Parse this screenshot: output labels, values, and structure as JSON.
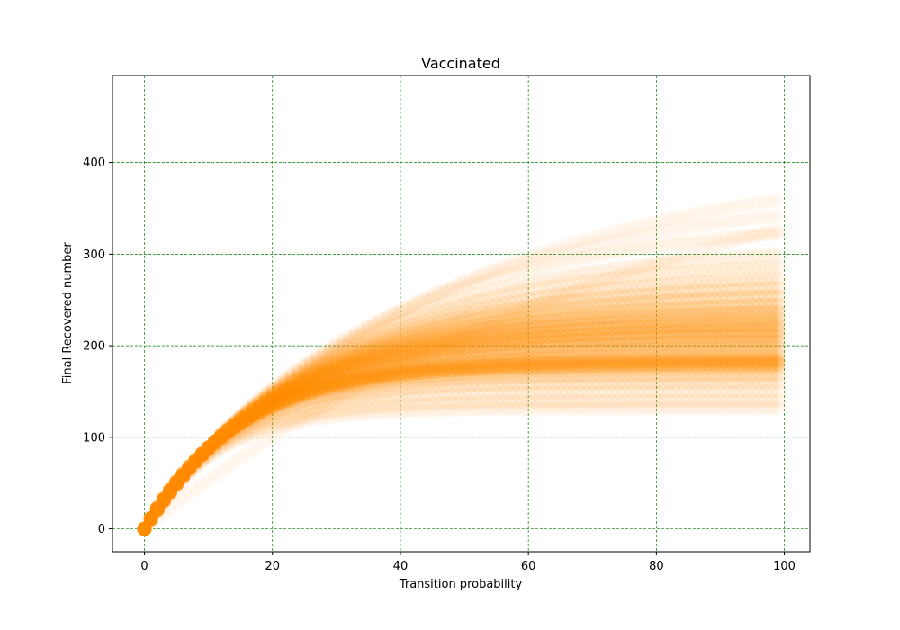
{
  "chart_data": {
    "type": "scatter",
    "title": "Vaccinated",
    "xlabel": "Transition probability",
    "ylabel": "Final Recovered number",
    "xlim": [
      -5,
      104
    ],
    "ylim": [
      -25,
      495
    ],
    "xticks": [
      0,
      20,
      40,
      60,
      80,
      100
    ],
    "yticks": [
      0,
      100,
      200,
      300,
      400
    ],
    "grid": true,
    "grid_color": "#008000",
    "marker_color": "#ff8c00",
    "x": {
      "start": 0,
      "end": 99,
      "step": 1
    },
    "series": [
      {
        "saturation": 470,
        "rate": 0.012,
        "opacity": 0.04
      },
      {
        "saturation": 405,
        "rate": 0.022,
        "opacity": 0.04
      },
      {
        "saturation": 370,
        "rate": 0.026,
        "opacity": 0.04
      },
      {
        "saturation": 340,
        "rate": 0.03,
        "opacity": 0.05
      },
      {
        "saturation": 310,
        "rate": 0.034,
        "opacity": 0.06
      },
      {
        "saturation": 295,
        "rate": 0.036,
        "opacity": 0.08
      },
      {
        "saturation": 280,
        "rate": 0.038,
        "opacity": 0.1
      },
      {
        "saturation": 268,
        "rate": 0.04,
        "opacity": 0.12
      },
      {
        "saturation": 258,
        "rate": 0.042,
        "opacity": 0.14
      },
      {
        "saturation": 248,
        "rate": 0.044,
        "opacity": 0.16
      },
      {
        "saturation": 240,
        "rate": 0.046,
        "opacity": 0.18
      },
      {
        "saturation": 232,
        "rate": 0.048,
        "opacity": 0.2
      },
      {
        "saturation": 225,
        "rate": 0.05,
        "opacity": 0.22
      },
      {
        "saturation": 218,
        "rate": 0.052,
        "opacity": 0.22
      },
      {
        "saturation": 212,
        "rate": 0.054,
        "opacity": 0.2
      },
      {
        "saturation": 205,
        "rate": 0.056,
        "opacity": 0.2
      },
      {
        "saturation": 198,
        "rate": 0.058,
        "opacity": 0.18
      },
      {
        "saturation": 190,
        "rate": 0.062,
        "opacity": 0.2
      },
      {
        "saturation": 184,
        "rate": 0.066,
        "opacity": 0.3
      },
      {
        "saturation": 180,
        "rate": 0.068,
        "opacity": 0.28
      },
      {
        "saturation": 175,
        "rate": 0.07,
        "opacity": 0.16
      },
      {
        "saturation": 168,
        "rate": 0.072,
        "opacity": 0.12
      },
      {
        "saturation": 160,
        "rate": 0.075,
        "opacity": 0.1
      },
      {
        "saturation": 150,
        "rate": 0.08,
        "opacity": 0.08
      },
      {
        "saturation": 140,
        "rate": 0.085,
        "opacity": 0.08
      },
      {
        "saturation": 132,
        "rate": 0.09,
        "opacity": 0.06
      }
    ]
  }
}
